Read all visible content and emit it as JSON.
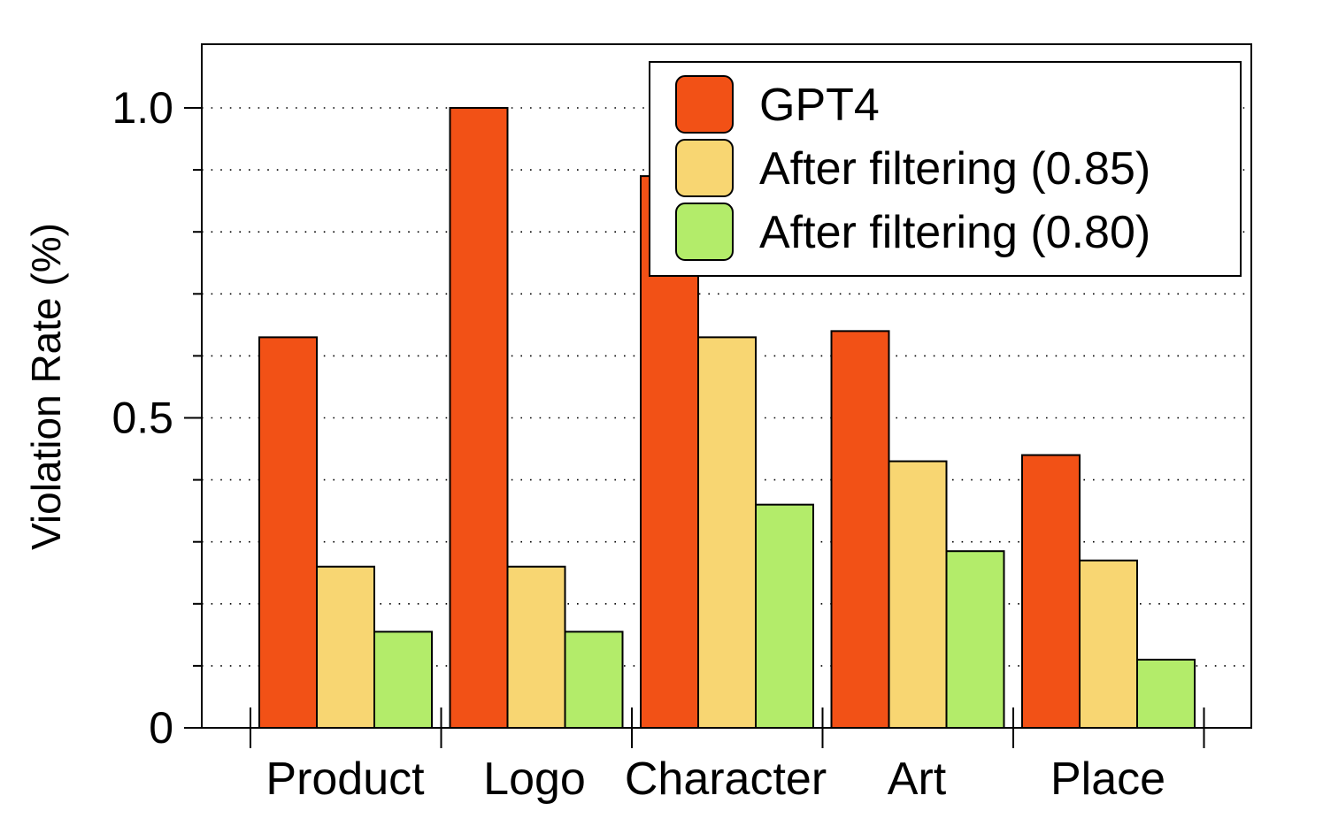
{
  "chart_data": {
    "type": "bar",
    "categories": [
      "Product",
      "Logo",
      "Character",
      "Art",
      "Place"
    ],
    "series": [
      {
        "name": "GPT4",
        "color": "#F25116",
        "values": [
          0.63,
          1.0,
          0.89,
          0.64,
          0.44
        ]
      },
      {
        "name": "After filtering (0.85)",
        "color": "#F8D672",
        "values": [
          0.26,
          0.26,
          0.63,
          0.43,
          0.27
        ]
      },
      {
        "name": "After filtering (0.80)",
        "color": "#B3EC6A",
        "values": [
          0.155,
          0.155,
          0.36,
          0.285,
          0.11
        ]
      }
    ],
    "ylabel": "Violation Rate (%)",
    "xlabel": "",
    "ylim": [
      0,
      1.1
    ],
    "yticks": [
      {
        "value": 0,
        "label": "0"
      },
      {
        "value": 0.5,
        "label": "0.5"
      },
      {
        "value": 1.0,
        "label": "1.0"
      }
    ],
    "gridlines": [
      0.1,
      0.2,
      0.3,
      0.4,
      0.5,
      0.6,
      0.7,
      0.8,
      0.9,
      1.0
    ],
    "grid": true,
    "legend_position": "top-right"
  }
}
